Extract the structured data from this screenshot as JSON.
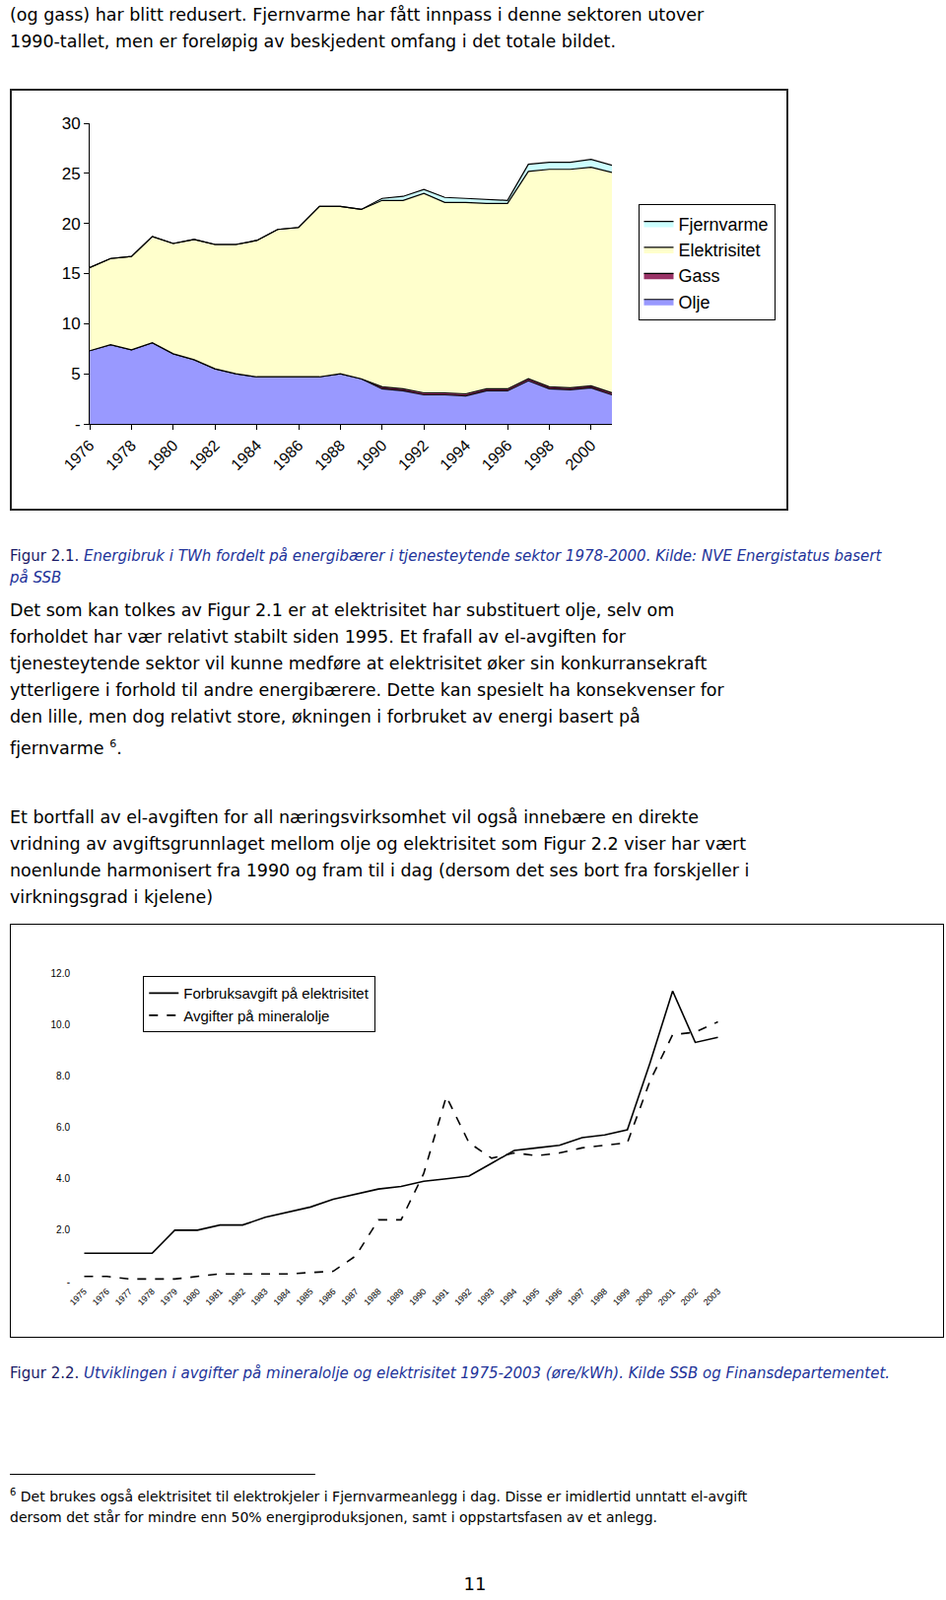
{
  "document": {
    "top_paragraph": [
      "(og gass) har blitt redusert. Fjernvarme har fått innpass i denne sektoren utover",
      "1990-tallet, men er foreløpig av beskjedent omfang i det totale bildet."
    ],
    "figures": [
      {
        "caption": {
          "label": "Figur 2.1.",
          "text": "Energibruk i TWh fordelt på energibærer i tjenesteytende sektor 1978-2000. Kilde: NVE Energistatus basert på SSB"
        }
      },
      {
        "caption": {
          "label": "Figur 2.2.",
          "text": "Utviklingen i avgifter på mineralolje og elektrisitet 1975-2003 (øre/kWh). Kilde SSB og Finansdepartementet."
        }
      }
    ],
    "paragraphs": [
      {
        "lines": [
          "Det som kan tolkes av Figur 2.1 er at elektrisitet har substituert olje, selv om",
          "forholdet har vær relativt stabilt siden 1995. Et frafall av el-avgiften for",
          "tjenesteytende sektor vil kunne medføre at elektrisitet øker sin konkurransekraft",
          "ytterligere i forhold til andre energibærere. Dette kan spesielt ha konsekvenser for",
          "den lille, men dog relativt store, økningen i forbruket av energi basert på",
          "fjernvarme"
        ],
        "footnote_ref": "6",
        "end": "."
      },
      {
        "lines": [
          "Et bortfall av el-avgiften for all næringsvirksomhet vil også innebære en direkte",
          "vridning av avgiftsgrunnlaget mellom olje og elektrisitet som Figur 2.2 viser har vært",
          "noenlunde harmonisert fra 1990 og fram til i dag (dersom det ses bort fra forskjeller i",
          "virkningsgrad i kjelene)"
        ]
      }
    ],
    "footnote": {
      "ref": "6",
      "lines": [
        "Det brukes også elektrisitet til elektrokjeler i Fjernvarmeanlegg i dag. Disse er imidlertid unntatt el-avgift",
        "dersom det står for mindre enn 50% energiproduksjonen, samt i oppstartsfasen av et anlegg."
      ]
    },
    "page_number": 11
  },
  "chart_data": [
    {
      "type": "area",
      "stacked": true,
      "x": [
        1976,
        1977,
        1978,
        1979,
        1980,
        1981,
        1982,
        1983,
        1984,
        1985,
        1986,
        1987,
        1988,
        1989,
        1990,
        1991,
        1992,
        1993,
        1994,
        1995,
        1996,
        1997,
        1998,
        1999,
        2000,
        2001
      ],
      "series": [
        {
          "name": "Olje",
          "color": "#9999ff",
          "values": [
            7.3,
            7.9,
            7.4,
            8.1,
            7.0,
            6.4,
            5.5,
            5.0,
            4.7,
            4.7,
            4.7,
            4.7,
            5.0,
            4.5,
            3.5,
            3.3,
            2.9,
            2.9,
            2.8,
            3.3,
            3.3,
            4.3,
            3.5,
            3.4,
            3.6,
            2.9
          ]
        },
        {
          "name": "Gass",
          "color": "#993366",
          "values": [
            0,
            0,
            0,
            0,
            0,
            0,
            0,
            0,
            0,
            0,
            0,
            0,
            0,
            0,
            0.2,
            0.2,
            0.2,
            0.2,
            0.2,
            0.2,
            0.2,
            0.2,
            0.2,
            0.2,
            0.2,
            0.2
          ]
        },
        {
          "name": "Elektrisitet",
          "color": "#ffffcc",
          "values": [
            8.3,
            8.6,
            9.3,
            10.6,
            11.0,
            12.0,
            12.4,
            12.9,
            13.6,
            14.7,
            14.9,
            17.0,
            16.7,
            16.9,
            18.6,
            18.8,
            19.9,
            19.0,
            19.1,
            18.5,
            18.5,
            20.7,
            21.7,
            21.8,
            21.8,
            22.0
          ]
        },
        {
          "name": "Fjernvarme",
          "color": "#ccffff",
          "values": [
            0,
            0,
            0,
            0,
            0,
            0,
            0,
            0,
            0,
            0,
            0,
            0,
            0,
            0,
            0.2,
            0.4,
            0.4,
            0.5,
            0.4,
            0.4,
            0.3,
            0.7,
            0.7,
            0.7,
            0.8,
            0.7
          ]
        }
      ],
      "xlim": [
        1976,
        2001
      ],
      "xticks": [
        1976,
        1978,
        1980,
        1982,
        1984,
        1986,
        1988,
        1990,
        1992,
        1994,
        1996,
        1998,
        2000
      ],
      "ylim": [
        0,
        30
      ],
      "yticks": [
        {
          "value": 0,
          "label": "-"
        },
        5,
        10,
        15,
        20,
        25,
        30
      ],
      "grid": false,
      "legend": "right"
    },
    {
      "type": "line",
      "categories": [
        "1975",
        "1976",
        "1977",
        "1978",
        "1979",
        "1980",
        "1981",
        "1982",
        "1983",
        "1984",
        "1985",
        "1986",
        "1987",
        "1988",
        "1989",
        "1990",
        "1991",
        "1992",
        "1993",
        "1994",
        "1995",
        "1996",
        "1997",
        "1998",
        "1999",
        "2000",
        "2001",
        "2002",
        "2003"
      ],
      "series": [
        {
          "name": "Forbruksavgift på elektrisitet",
          "color": "#000000",
          "line_style": "solid",
          "values": [
            1.1,
            1.1,
            1.1,
            1.1,
            2.0,
            2.0,
            2.2,
            2.2,
            2.5,
            2.7,
            2.9,
            3.2,
            3.4,
            3.6,
            3.7,
            3.9,
            4.0,
            4.1,
            4.6,
            5.1,
            5.2,
            5.3,
            5.6,
            5.7,
            5.9,
            8.5,
            11.3,
            9.3,
            9.5
          ]
        },
        {
          "name": "Avgifter på mineralolje",
          "color": "#000000",
          "line_style": "dash",
          "values": [
            0.2,
            0.2,
            0.1,
            0.1,
            0.1,
            0.2,
            0.3,
            0.3,
            0.3,
            0.3,
            0.35,
            0.4,
            1.0,
            2.4,
            2.4,
            4.2,
            7.2,
            5.4,
            4.8,
            5.0,
            4.9,
            5.0,
            5.2,
            5.3,
            5.4,
            7.8,
            9.6,
            9.7,
            10.1
          ]
        }
      ],
      "ylim": [
        0,
        12
      ],
      "yticks": [
        {
          "value": 0,
          "label": "-"
        },
        {
          "value": 2,
          "label": "2.0"
        },
        {
          "value": 4,
          "label": "4.0"
        },
        {
          "value": 6,
          "label": "6.0"
        },
        {
          "value": 8,
          "label": "8.0"
        },
        {
          "value": 10,
          "label": "10.0"
        },
        {
          "value": 12,
          "label": "12.0"
        }
      ],
      "grid": false,
      "legend": "top left"
    }
  ]
}
